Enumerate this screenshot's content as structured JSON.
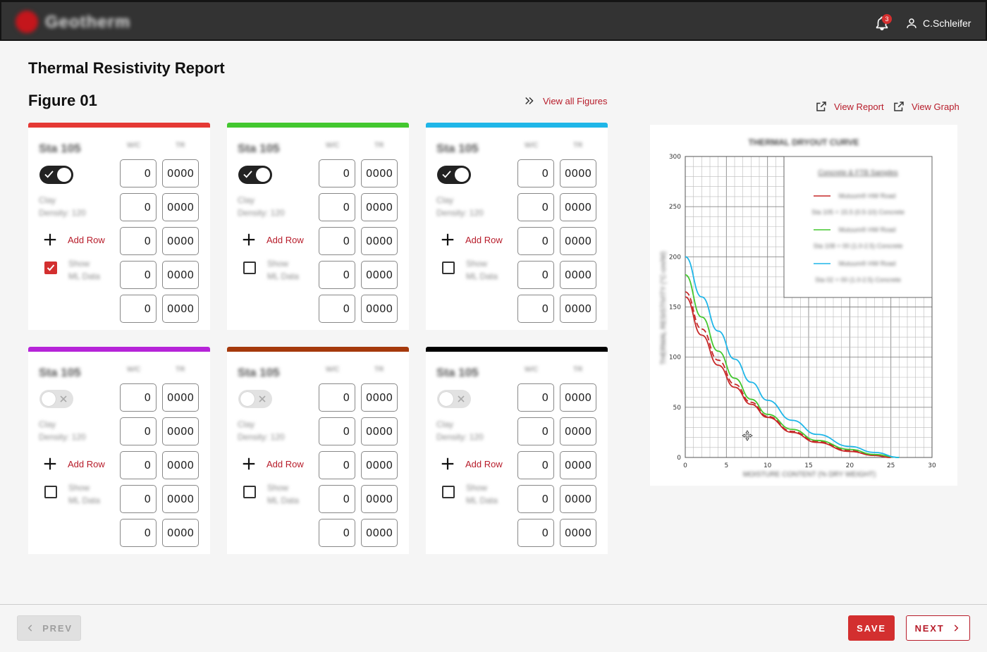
{
  "app": {
    "brand": "Geotherm",
    "notification_count": "3",
    "user_name": "C.Schleifer"
  },
  "page": {
    "title": "Thermal Resistivity Report",
    "figure_title": "Figure 01",
    "view_all_label": "View all Figures"
  },
  "actions": {
    "view_report_label": "View Report",
    "view_graph_label": "View Graph"
  },
  "cards": [
    {
      "station": "Sta 105",
      "col_a": "W/C",
      "col_b": "TR",
      "color": "#e53935",
      "toggle_on": true,
      "soil": [
        "Clay",
        "Density: 120"
      ],
      "add_row_label": "Add Row",
      "show_checked": true,
      "show_label": [
        "Show",
        "ML Data"
      ],
      "rows": [
        [
          "0",
          "0000"
        ],
        [
          "0",
          "0000"
        ],
        [
          "0",
          "0000"
        ],
        [
          "0",
          "0000"
        ],
        [
          "0",
          "0000"
        ]
      ]
    },
    {
      "station": "Sta 105",
      "col_a": "W/C",
      "col_b": "TR",
      "color": "#43c72f",
      "toggle_on": true,
      "soil": [
        "Clay",
        "Density: 120"
      ],
      "add_row_label": "Add Row",
      "show_checked": false,
      "show_label": [
        "Show",
        "ML Data"
      ],
      "rows": [
        [
          "0",
          "0000"
        ],
        [
          "0",
          "0000"
        ],
        [
          "0",
          "0000"
        ],
        [
          "0",
          "0000"
        ],
        [
          "0",
          "0000"
        ]
      ]
    },
    {
      "station": "Sta 105",
      "col_a": "W/C",
      "col_b": "TR",
      "color": "#1fb6e8",
      "toggle_on": true,
      "soil": [
        "Clay",
        "Density: 120"
      ],
      "add_row_label": "Add Row",
      "show_checked": false,
      "show_label": [
        "Show",
        "ML Data"
      ],
      "rows": [
        [
          "0",
          "0000"
        ],
        [
          "0",
          "0000"
        ],
        [
          "0",
          "0000"
        ],
        [
          "0",
          "0000"
        ],
        [
          "0",
          "0000"
        ]
      ]
    },
    {
      "station": "Sta 105",
      "col_a": "W/C",
      "col_b": "TR",
      "color": "#b624d8",
      "toggle_on": false,
      "soil": [
        "Clay",
        "Density: 120"
      ],
      "add_row_label": "Add Row",
      "show_checked": false,
      "show_label": [
        "Show",
        "ML Data"
      ],
      "rows": [
        [
          "0",
          "0000"
        ],
        [
          "0",
          "0000"
        ],
        [
          "0",
          "0000"
        ],
        [
          "0",
          "0000"
        ],
        [
          "0",
          "0000"
        ]
      ]
    },
    {
      "station": "Sta 105",
      "col_a": "W/C",
      "col_b": "TR",
      "color": "#a5390c",
      "toggle_on": false,
      "soil": [
        "Clay",
        "Density: 120"
      ],
      "add_row_label": "Add Row",
      "show_checked": false,
      "show_label": [
        "Show",
        "ML Data"
      ],
      "rows": [
        [
          "0",
          "0000"
        ],
        [
          "0",
          "0000"
        ],
        [
          "0",
          "0000"
        ],
        [
          "0",
          "0000"
        ],
        [
          "0",
          "0000"
        ]
      ]
    },
    {
      "station": "Sta 105",
      "col_a": "W/C",
      "col_b": "TR",
      "color": "#000000",
      "toggle_on": false,
      "soil": [
        "Clay",
        "Density: 120"
      ],
      "add_row_label": "Add Row",
      "show_checked": false,
      "show_label": [
        "Show",
        "ML Data"
      ],
      "rows": [
        [
          "0",
          "0000"
        ],
        [
          "0",
          "0000"
        ],
        [
          "0",
          "0000"
        ],
        [
          "0",
          "0000"
        ],
        [
          "0",
          "0000"
        ]
      ]
    }
  ],
  "chart_data": {
    "type": "line",
    "title": "THERMAL DRYOUT CURVE",
    "xlabel": "MOISTURE CONTENT (% DRY WEIGHT)",
    "ylabel": "THERMAL RESISTIVITY (°C-cm/W)",
    "xlim": [
      0,
      30
    ],
    "ylim": [
      0,
      300
    ],
    "x_ticks": [
      0,
      5,
      10,
      15,
      20,
      25,
      30
    ],
    "y_ticks": [
      0,
      50,
      100,
      150,
      200,
      250,
      300
    ],
    "grid": true,
    "legend_position": "top-right",
    "legend_title": "Concrete & FTB Samples",
    "legend_entries": [
      {
        "name": "Mutuum® HW Road",
        "detail": "Sta 105 + 15.5 (0.5-10) Concrete",
        "color": "#c62828"
      },
      {
        "name": "Mutuum® HW Road",
        "detail": "Sta 108 + 00 (1.0-2.5) Concrete",
        "color": "#43c72f"
      },
      {
        "name": "Mutuum® HW Road",
        "detail": "Sta 02 + 00 (1.0-2.5) Concrete",
        "color": "#1fb6e8"
      }
    ],
    "series": [
      {
        "color": "#c62828",
        "x": [
          0,
          2,
          4,
          6,
          8,
          10,
          13,
          16,
          20,
          23,
          25
        ],
        "values": [
          160,
          122,
          92,
          70,
          53,
          40,
          25,
          15,
          6,
          2,
          0
        ]
      },
      {
        "color": "#c62828",
        "dashed": true,
        "x": [
          0,
          2,
          4,
          6,
          8,
          10,
          13,
          16,
          20,
          23,
          25
        ],
        "values": [
          165,
          128,
          97,
          73,
          55,
          41,
          26,
          16,
          7,
          2,
          0
        ]
      },
      {
        "color": "#43c72f",
        "x": [
          0,
          2,
          4,
          6,
          8,
          10,
          13,
          16,
          20,
          23,
          26
        ],
        "values": [
          182,
          140,
          106,
          79,
          58,
          43,
          28,
          17,
          8,
          3,
          0
        ]
      },
      {
        "color": "#1fb6e8",
        "x": [
          0,
          2,
          4,
          6,
          8,
          10,
          13,
          16,
          20,
          23,
          26
        ],
        "values": [
          200,
          160,
          126,
          98,
          75,
          57,
          37,
          23,
          11,
          5,
          0
        ]
      }
    ]
  },
  "footer": {
    "prev_label": "PREV",
    "save_label": "SAVE",
    "next_label": "NEXT"
  }
}
